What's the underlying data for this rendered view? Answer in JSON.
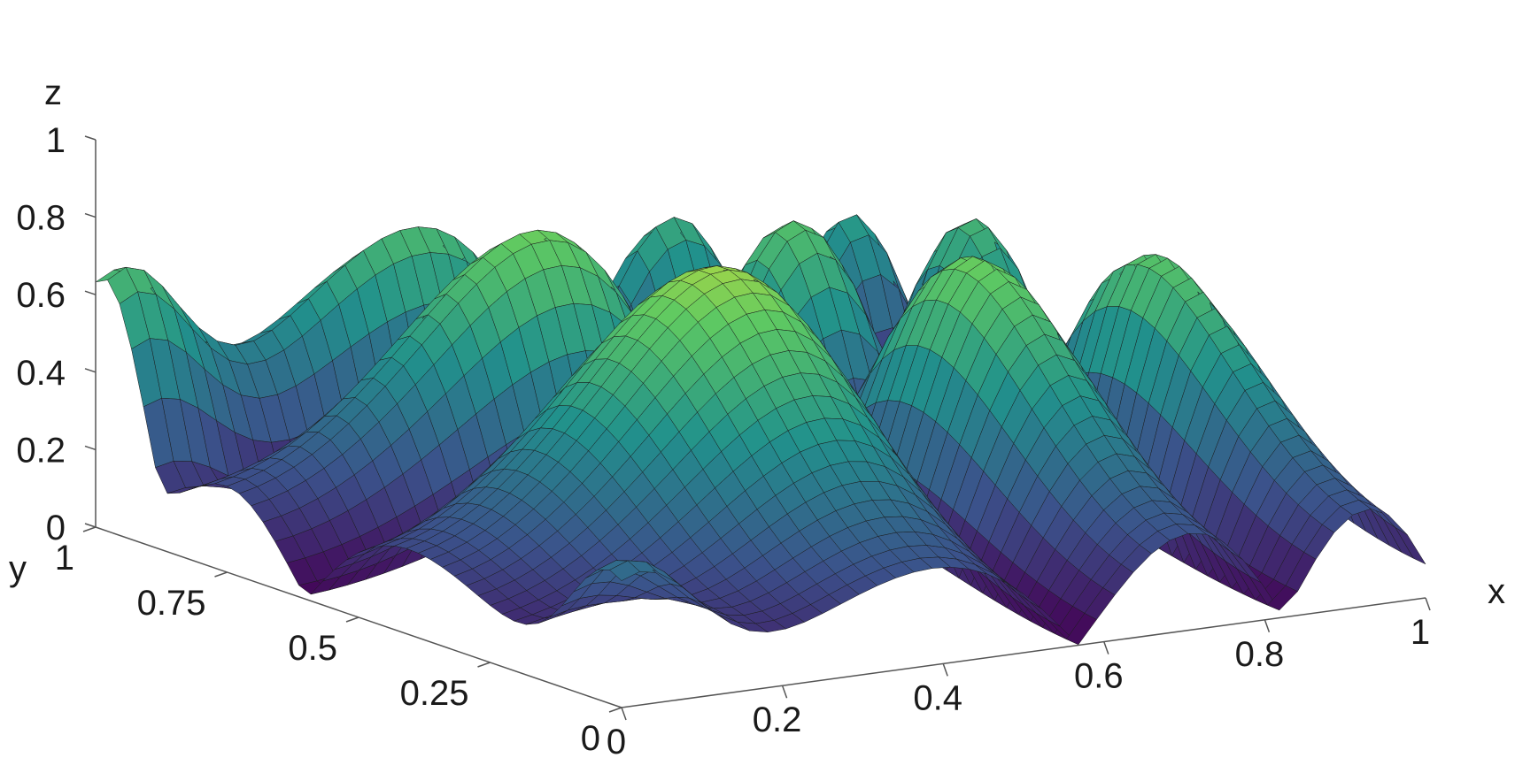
{
  "chart_data": {
    "type": "surface",
    "xlabel": "x",
    "ylabel": "y",
    "zlabel": "z",
    "xlim": [
      0,
      1
    ],
    "ylim": [
      0,
      1
    ],
    "zlim": [
      0,
      1
    ],
    "x_ticks": [
      "0",
      "0.2",
      "0.4",
      "0.6",
      "0.8",
      "1"
    ],
    "y_ticks": [
      "0",
      "0.25",
      "0.5",
      "0.75",
      "1"
    ],
    "z_ticks": [
      "0",
      "0.2",
      "0.4",
      "0.6",
      "0.8",
      "1"
    ],
    "colormap": "viridis",
    "colors": [
      "#440154",
      "#3b528b",
      "#21918c",
      "#5ec962",
      "#fde725"
    ],
    "grid": false,
    "mesh_lines": true
  }
}
